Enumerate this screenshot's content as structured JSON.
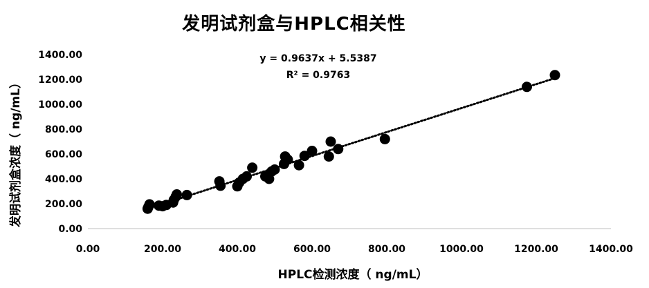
{
  "chart_data": {
    "type": "scatter",
    "title": "发明试剂盒与HPLC相关性",
    "xlabel": "HPLC检测浓度（ ng/mL）",
    "ylabel": "发明试剂盒浓度（ ng/mL）",
    "xlim": [
      0,
      1400
    ],
    "ylim": [
      0,
      1400
    ],
    "x_ticks": [
      "0.00",
      "200.00",
      "400.00",
      "600.00",
      "800.00",
      "1000.00",
      "1200.00",
      "1400.00"
    ],
    "y_ticks": [
      "0.00",
      "200.00",
      "400.00",
      "600.00",
      "800.00",
      "1000.00",
      "1200.00",
      "1400.00"
    ],
    "grid": false,
    "legend": "none",
    "point_color": "#000000",
    "trendline": {
      "type": "linear",
      "slope": 0.9637,
      "intercept": 5.5387,
      "style": "dotted",
      "equation": "y = 0.9637x + 5.5387",
      "r_squared": "R² = 0.9763"
    },
    "points": [
      {
        "x": 160,
        "y": 160
      },
      {
        "x": 162,
        "y": 175
      },
      {
        "x": 165,
        "y": 195
      },
      {
        "x": 190,
        "y": 185
      },
      {
        "x": 200,
        "y": 180
      },
      {
        "x": 210,
        "y": 190
      },
      {
        "x": 228,
        "y": 210
      },
      {
        "x": 230,
        "y": 230
      },
      {
        "x": 235,
        "y": 255
      },
      {
        "x": 238,
        "y": 275
      },
      {
        "x": 265,
        "y": 270
      },
      {
        "x": 352,
        "y": 380
      },
      {
        "x": 355,
        "y": 345
      },
      {
        "x": 400,
        "y": 340
      },
      {
        "x": 405,
        "y": 370
      },
      {
        "x": 415,
        "y": 400
      },
      {
        "x": 425,
        "y": 420
      },
      {
        "x": 440,
        "y": 490
      },
      {
        "x": 475,
        "y": 420
      },
      {
        "x": 485,
        "y": 400
      },
      {
        "x": 492,
        "y": 460
      },
      {
        "x": 500,
        "y": 475
      },
      {
        "x": 525,
        "y": 520
      },
      {
        "x": 528,
        "y": 580
      },
      {
        "x": 535,
        "y": 555
      },
      {
        "x": 565,
        "y": 510
      },
      {
        "x": 580,
        "y": 585
      },
      {
        "x": 600,
        "y": 625
      },
      {
        "x": 645,
        "y": 580
      },
      {
        "x": 650,
        "y": 700
      },
      {
        "x": 670,
        "y": 640
      },
      {
        "x": 795,
        "y": 720
      },
      {
        "x": 1175,
        "y": 1140
      },
      {
        "x": 1250,
        "y": 1235
      }
    ]
  }
}
